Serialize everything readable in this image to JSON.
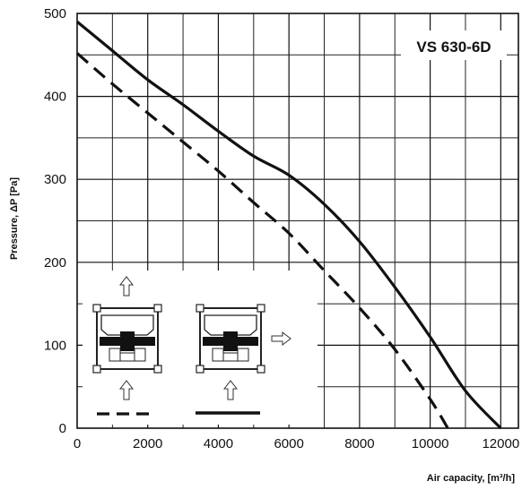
{
  "chart_data": {
    "type": "line",
    "title": "VS 630-6D",
    "xlabel": "Air capacity, [m³/h]",
    "ylabel": "Pressure, ΔP [Pa]",
    "xlim": [
      0,
      12500
    ],
    "ylim": [
      0,
      500
    ],
    "x_ticks": [
      0,
      2000,
      4000,
      6000,
      8000,
      10000,
      12000
    ],
    "y_ticks": [
      0,
      100,
      200,
      300,
      400,
      500
    ],
    "grid": true,
    "series": [
      {
        "style": "solid",
        "color": "#111111",
        "x": [
          0,
          1000,
          2000,
          3000,
          4000,
          5000,
          6000,
          7000,
          8000,
          9000,
          10000,
          11000,
          12000
        ],
        "y": [
          490,
          455,
          420,
          390,
          358,
          328,
          305,
          270,
          225,
          170,
          110,
          45,
          0
        ]
      },
      {
        "style": "dashed",
        "color": "#111111",
        "x": [
          0,
          1000,
          2000,
          3000,
          4000,
          5000,
          6000,
          7000,
          8000,
          9000,
          10000,
          10500
        ],
        "y": [
          452,
          415,
          380,
          345,
          310,
          272,
          235,
          190,
          145,
          95,
          35,
          0
        ]
      }
    ],
    "legend": {
      "placement": "bottom-left",
      "items": [
        {
          "style": "dashed",
          "diagram": "vertical airflow (air enters bottom, exits top)"
        },
        {
          "style": "solid",
          "diagram": "horizontal discharge (air enters bottom, exits side)"
        }
      ]
    }
  }
}
